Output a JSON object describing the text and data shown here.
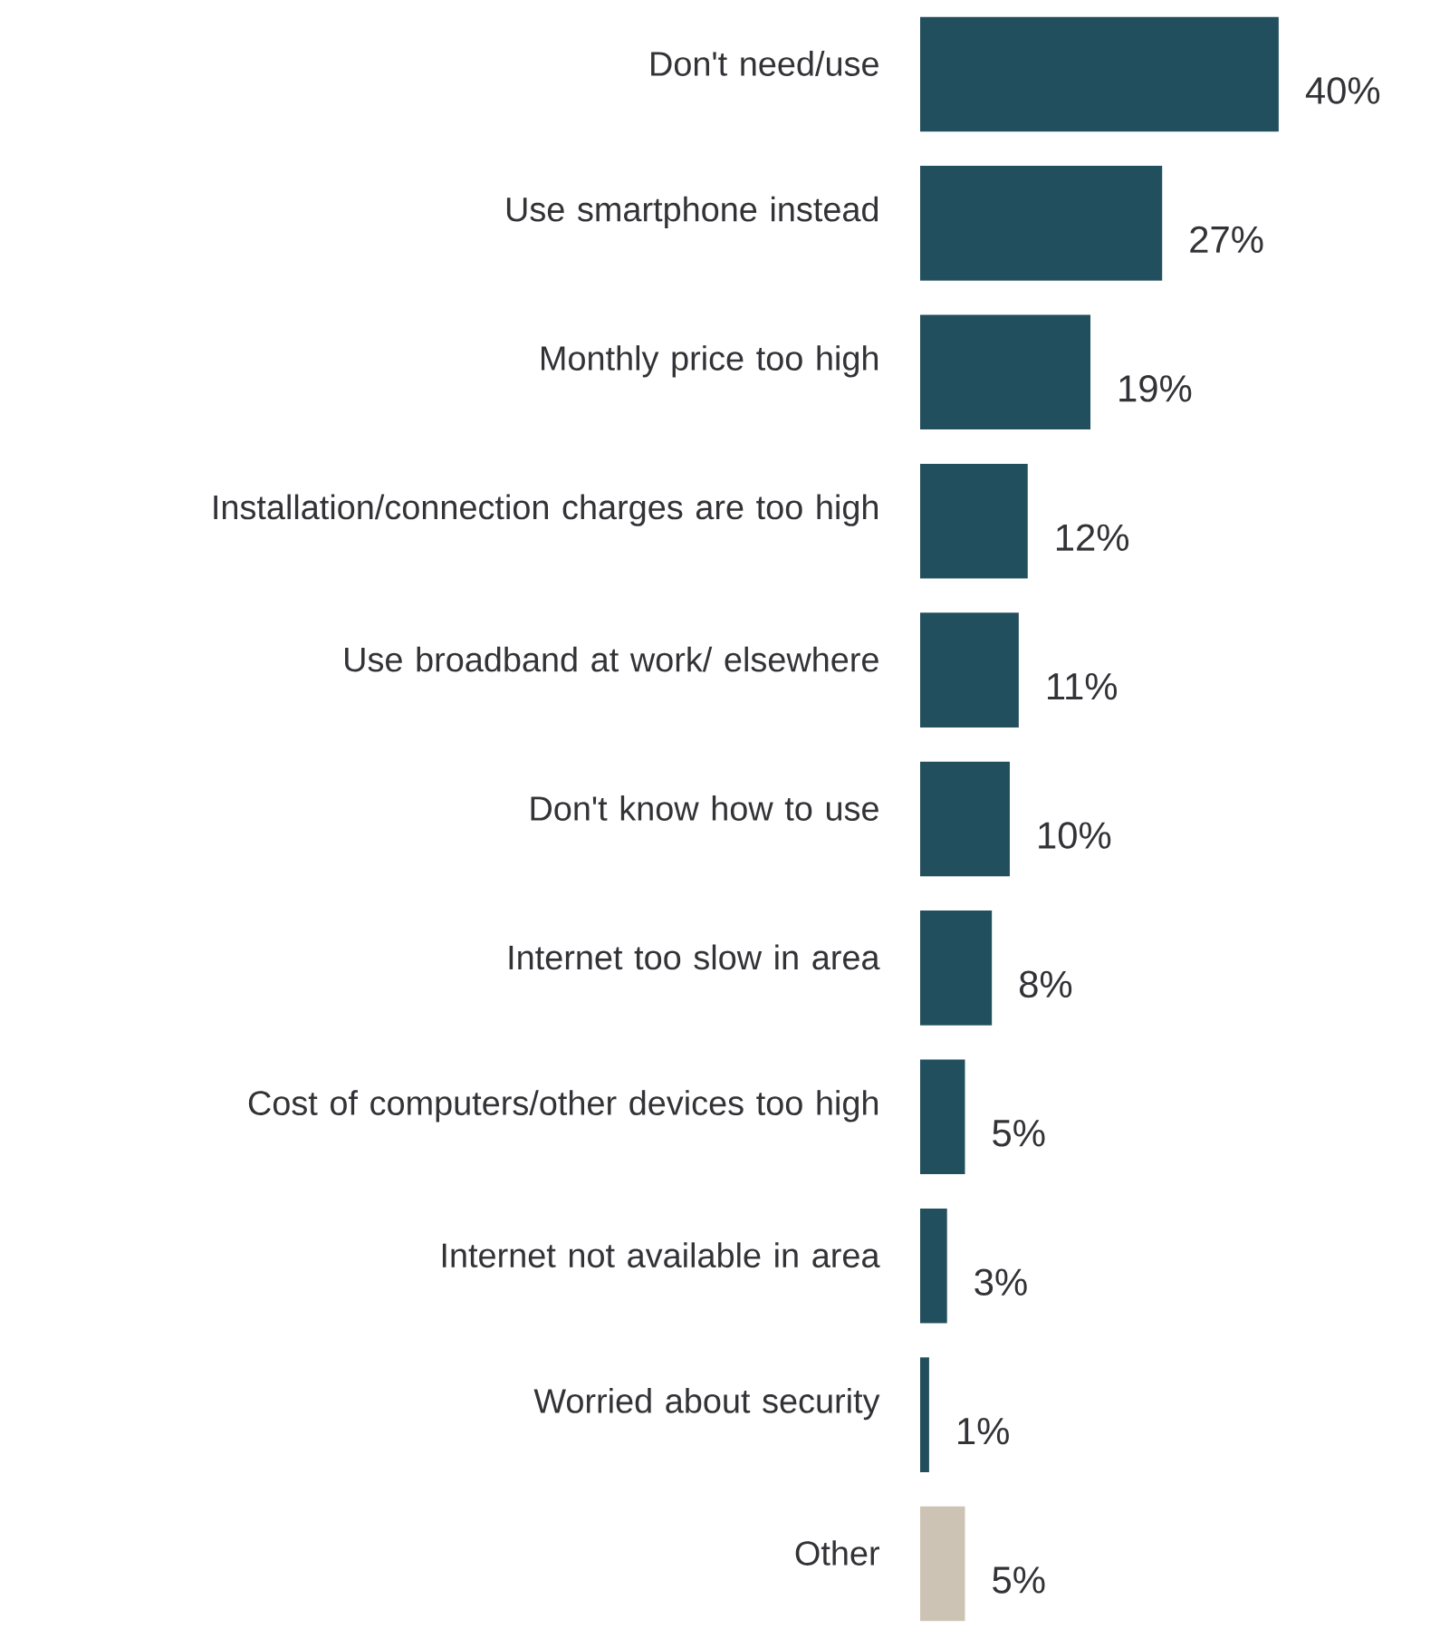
{
  "chart_data": {
    "type": "bar",
    "orientation": "horizontal",
    "categories": [
      "Don't need/use",
      "Use smartphone instead",
      "Monthly price too high",
      "Installation/connection charges are too high",
      "Use broadband at work/ elsewhere",
      "Don't know how to use",
      "Internet too slow in area",
      "Cost of computers/other devices too high",
      "Internet not available in area",
      "Worried about security",
      "Other"
    ],
    "values": [
      40,
      27,
      19,
      12,
      11,
      10,
      8,
      5,
      3,
      1,
      5
    ],
    "value_labels": [
      "40%",
      "27%",
      "19%",
      "12%",
      "11%",
      "10%",
      "8%",
      "5%",
      "3%",
      "1%",
      "5%"
    ],
    "colors": [
      "#224f5e",
      "#224f5e",
      "#224f5e",
      "#224f5e",
      "#224f5e",
      "#224f5e",
      "#224f5e",
      "#224f5e",
      "#224f5e",
      "#224f5e",
      "#cdc3b5"
    ],
    "tick_labels": "y"
  }
}
